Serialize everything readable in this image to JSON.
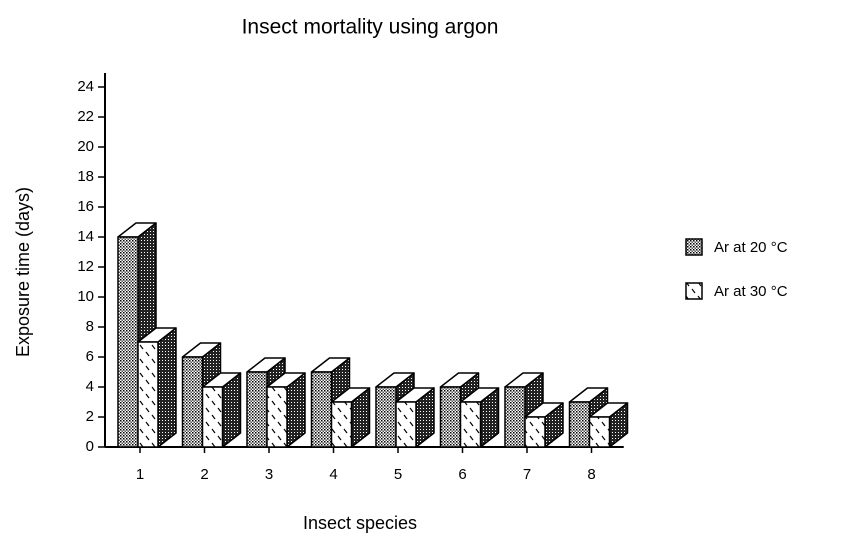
{
  "chart_data": {
    "type": "bar3d",
    "title": "Insect mortality using argon",
    "x_label": "Insect species",
    "y_label": "Exposure time (days)",
    "categories": [
      "1",
      "2",
      "3",
      "4",
      "5",
      "6",
      "7",
      "8"
    ],
    "series": [
      {
        "name": "Ar at 20 °C",
        "values": [
          14,
          6,
          5,
          5,
          4,
          4,
          4,
          3
        ]
      },
      {
        "name": "Ar at 30 °C",
        "values": [
          7,
          4,
          4,
          3,
          3,
          3,
          2,
          2
        ]
      }
    ],
    "ylim": [
      0,
      24
    ],
    "yticks": [
      0,
      2,
      4,
      6,
      8,
      10,
      12,
      14,
      16,
      18,
      20,
      22,
      24
    ],
    "legend": "right"
  }
}
